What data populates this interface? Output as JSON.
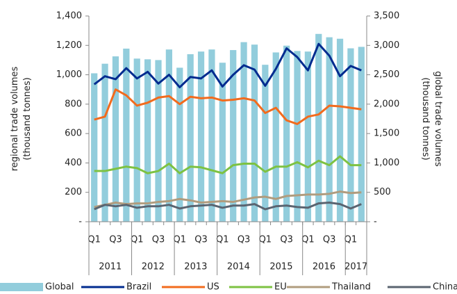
{
  "chart_data": {
    "type": "combo",
    "y_label": "regional trade volumes\n(thousand tonnes)",
    "y2_label": "global trade volumes\n(thousand tonnes)",
    "categories": [
      "Q1",
      null,
      "Q3",
      null,
      "Q1",
      null,
      "Q3",
      null,
      "Q1",
      null,
      "Q3",
      null,
      "Q1",
      null,
      "Q3",
      null,
      "Q1",
      null,
      "Q3",
      null,
      "Q1",
      null,
      "Q3",
      null,
      "Q1",
      null
    ],
    "years": [
      "2011",
      "2012",
      "2013",
      "2014",
      "2015",
      "2016",
      "2017"
    ],
    "ylim": [
      0,
      1400
    ],
    "yticks": [
      {
        "value": 0,
        "label": "-"
      },
      200,
      400,
      600,
      800,
      {
        "value": 1000,
        "label": "1,000"
      },
      {
        "value": 1200,
        "label": "1,200"
      },
      {
        "value": 1400,
        "label": "1,400"
      }
    ],
    "y2lim": [
      0,
      3500
    ],
    "y2ticks": [
      {
        "value": 0,
        "label": "-"
      },
      500,
      {
        "value": 1000,
        "label": "1,000"
      },
      {
        "value": 1500,
        "label": "1,500"
      },
      {
        "value": 2000,
        "label": "2,000"
      },
      {
        "value": 2500,
        "label": "2,500"
      },
      {
        "value": 3000,
        "label": "3,000"
      },
      {
        "value": 3500,
        "label": "3,500"
      }
    ],
    "series": [
      {
        "name": "Global",
        "type": "bar",
        "axis": "y2",
        "color": "#92cddc",
        "values": [
          2525,
          2688,
          2813,
          2945,
          2775,
          2763,
          2750,
          2930,
          2620,
          2850,
          2895,
          2930,
          2705,
          2920,
          3055,
          3013,
          2670,
          2880,
          2995,
          2905,
          2895,
          3195,
          3138,
          3113,
          2950,
          2975
        ]
      },
      {
        "name": "Brazil",
        "type": "line",
        "color": "#002b8f",
        "values": [
          935,
          990,
          970,
          1045,
          975,
          1020,
          940,
          1000,
          915,
          985,
          975,
          1030,
          920,
          1000,
          1065,
          1035,
          925,
          1040,
          1180,
          1120,
          1030,
          1210,
          1130,
          990,
          1060,
          1030
        ]
      },
      {
        "name": "US",
        "type": "line",
        "color": "#f26b1d",
        "values": [
          695,
          715,
          900,
          860,
          790,
          810,
          845,
          855,
          800,
          850,
          840,
          845,
          825,
          830,
          840,
          825,
          740,
          775,
          690,
          665,
          715,
          730,
          790,
          785,
          775,
          765
        ]
      },
      {
        "name": "EU",
        "type": "line",
        "color": "#7dc242",
        "values": [
          345,
          345,
          360,
          375,
          365,
          330,
          345,
          395,
          330,
          375,
          370,
          350,
          330,
          385,
          395,
          395,
          340,
          375,
          375,
          405,
          370,
          415,
          385,
          445,
          385,
          385
        ]
      },
      {
        "name": "Thailand",
        "type": "line",
        "color": "#b09c7e",
        "values": [
          100,
          115,
          130,
          120,
          125,
          125,
          135,
          140,
          155,
          145,
          130,
          135,
          140,
          135,
          150,
          165,
          170,
          155,
          175,
          180,
          185,
          185,
          190,
          205,
          195,
          200
        ]
      },
      {
        "name": "China",
        "type": "line",
        "color": "#5a6470",
        "values": [
          85,
          115,
          105,
          115,
          95,
          105,
          105,
          115,
          90,
          105,
          110,
          115,
          95,
          110,
          110,
          120,
          85,
          105,
          110,
          100,
          95,
          125,
          130,
          120,
          90,
          120
        ]
      }
    ]
  }
}
